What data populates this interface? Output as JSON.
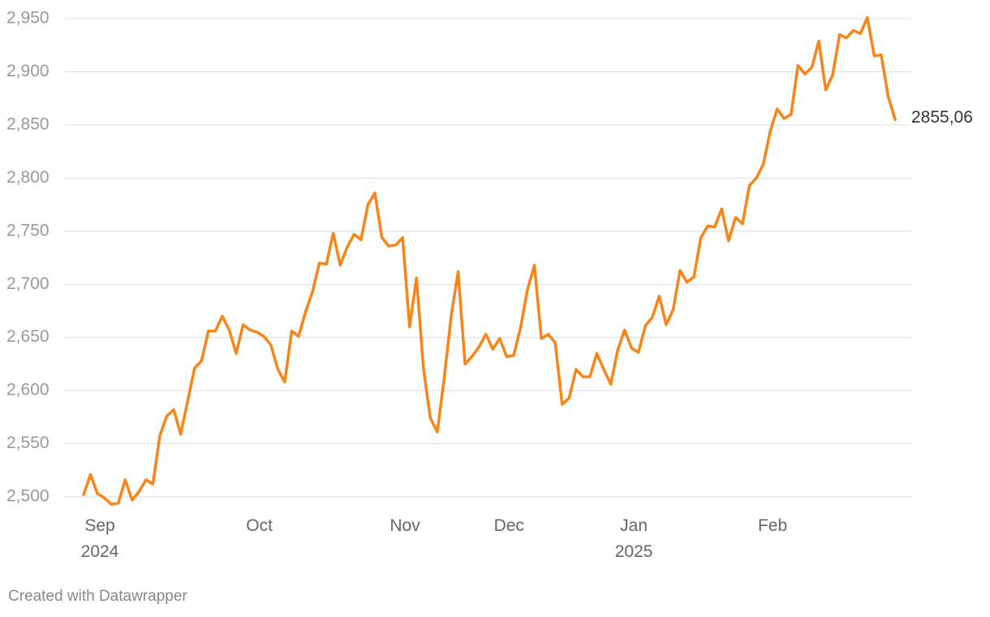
{
  "chart_data": {
    "type": "line",
    "categories": [
      "Sep\n2024",
      null,
      null,
      null,
      null,
      null,
      null,
      null,
      null,
      null,
      null,
      null,
      null,
      null,
      null,
      null,
      null,
      null,
      null,
      null,
      null,
      null,
      null,
      "Oct",
      null,
      null,
      null,
      null,
      null,
      null,
      null,
      null,
      null,
      null,
      null,
      null,
      null,
      null,
      null,
      null,
      null,
      null,
      null,
      null,
      "Nov",
      null,
      null,
      null,
      null,
      null,
      null,
      null,
      null,
      null,
      null,
      null,
      null,
      null,
      null,
      "Dec",
      null,
      null,
      null,
      null,
      null,
      null,
      null,
      null,
      null,
      null,
      null,
      null,
      null,
      null,
      null,
      null,
      null,
      "Jan\n2025",
      null,
      null,
      null,
      null,
      null,
      null,
      null,
      null,
      null,
      null,
      null,
      null,
      null,
      null,
      null,
      null,
      null,
      null,
      null,
      "Feb",
      null,
      null,
      null,
      null,
      null,
      null,
      null,
      null,
      null,
      null,
      null,
      null,
      null,
      null,
      null,
      null,
      null,
      null,
      null,
      null
    ],
    "series": [
      {
        "color": "#f98518",
        "values": [
          2502,
          2521,
          2503,
          2499,
          2493,
          2494,
          2516,
          2497,
          2505,
          2516,
          2512,
          2558,
          2576,
          2582,
          2559,
          2590,
          2621,
          2628,
          2656,
          2656,
          2670,
          2657,
          2635,
          2662,
          2657,
          2655,
          2651,
          2643,
          2620,
          2608,
          2656,
          2651,
          2674,
          2693,
          2720,
          2719,
          2748,
          2718,
          2735,
          2747,
          2742,
          2775,
          2786,
          2744,
          2736,
          2737,
          2744,
          2660,
          2706,
          2621,
          2574,
          2561,
          2612,
          2670,
          2712,
          2625,
          2632,
          2641,
          2653,
          2639,
          2649,
          2632,
          2633,
          2659,
          2695,
          2718,
          2649,
          2653,
          2645,
          2587,
          2593,
          2620,
          2613,
          2613,
          2635,
          2620,
          2606,
          2638,
          2657,
          2640,
          2636,
          2661,
          2669,
          2689,
          2662,
          2676,
          2713,
          2702,
          2707,
          2744,
          2755,
          2754,
          2771,
          2741,
          2763,
          2757,
          2793,
          2800,
          2813,
          2844,
          2865,
          2856,
          2860,
          2906,
          2898,
          2904,
          2929,
          2883,
          2897,
          2935,
          2932,
          2939,
          2936,
          2951,
          2915,
          2916,
          2877,
          2855.06
        ],
        "value_labels": [
          null,
          null,
          null,
          null,
          null,
          null,
          null,
          null,
          null,
          null,
          null,
          null,
          null,
          null,
          null,
          null,
          null,
          null,
          null,
          null,
          null,
          null,
          null,
          null,
          null,
          null,
          null,
          null,
          null,
          null,
          null,
          null,
          null,
          null,
          null,
          null,
          null,
          null,
          null,
          null,
          null,
          null,
          null,
          null,
          null,
          null,
          null,
          null,
          null,
          null,
          null,
          null,
          null,
          null,
          null,
          null,
          null,
          null,
          null,
          null,
          null,
          null,
          null,
          null,
          null,
          null,
          null,
          null,
          null,
          null,
          null,
          null,
          null,
          null,
          null,
          null,
          null,
          null,
          null,
          null,
          null,
          null,
          null,
          null,
          null,
          null,
          null,
          null,
          null,
          null,
          null,
          null,
          null,
          null,
          null,
          null,
          null,
          null,
          null,
          null,
          null,
          null,
          null,
          null,
          null,
          null,
          null,
          null,
          null,
          null,
          null,
          null,
          null,
          null,
          null,
          null,
          null,
          "2855,06"
        ]
      }
    ],
    "ylim": [
      2485,
      2955
    ],
    "yticks": [
      {
        "value": 2500,
        "label": "2,500"
      },
      {
        "value": 2550,
        "label": "2,550"
      },
      {
        "value": 2600,
        "label": "2,600"
      },
      {
        "value": 2650,
        "label": "2,650"
      },
      {
        "value": 2700,
        "label": "2,700"
      },
      {
        "value": 2750,
        "label": "2,750"
      },
      {
        "value": 2800,
        "label": "2,800"
      },
      {
        "value": 2850,
        "label": "2,850"
      },
      {
        "value": 2900,
        "label": "2,900"
      },
      {
        "value": 2950,
        "label": "2,950"
      }
    ],
    "grid": true,
    "credit": "Created with Datawrapper"
  }
}
